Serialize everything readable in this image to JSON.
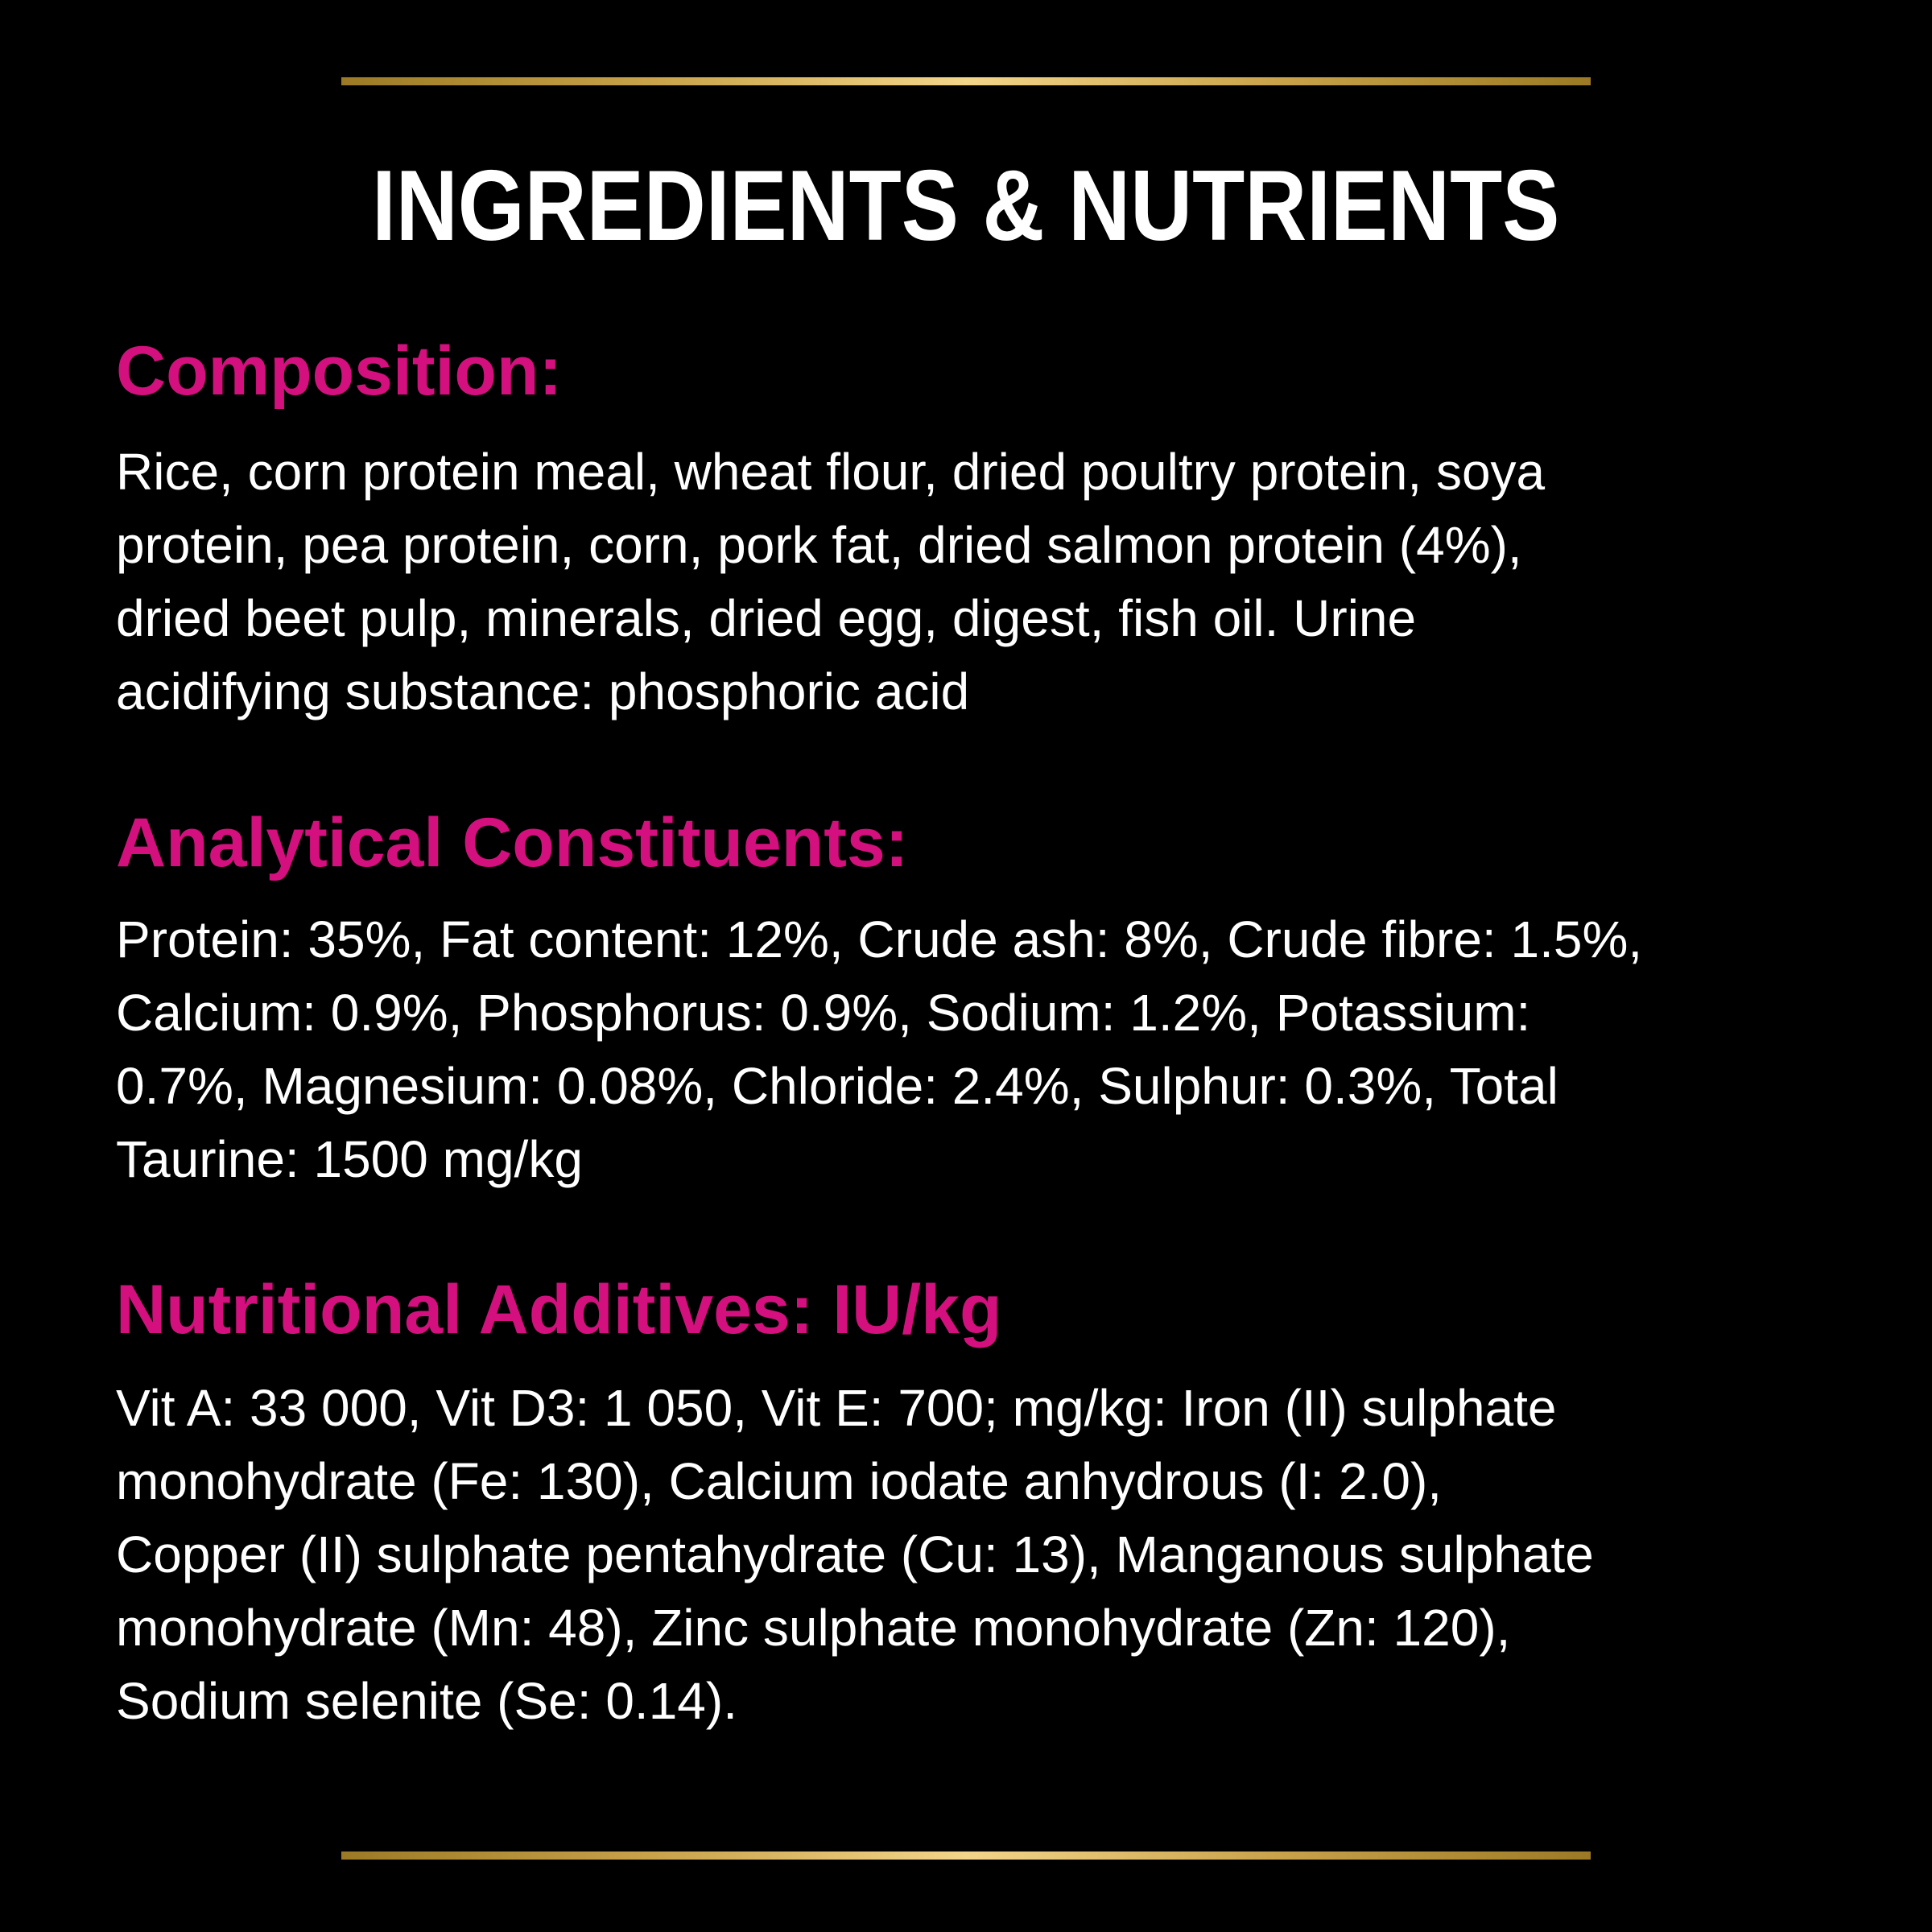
{
  "title": "INGREDIENTS & NUTRIENTS",
  "colors": {
    "background": "#000000",
    "accent": "#d4107e",
    "text": "#ffffff",
    "divider": "#c9a24a"
  },
  "sections": [
    {
      "heading": "Composition:",
      "lines": [
        "Rice, corn protein meal, wheat flour, dried poultry protein, soya",
        "protein, pea protein, corn, pork fat, dried salmon protein (4%),",
        "dried beet pulp, minerals, dried egg, digest, fish oil. Urine",
        "acidifying substance: phosphoric acid"
      ]
    },
    {
      "heading": "Analytical Constituents:",
      "lines": [
        "Protein: 35%, Fat content: 12%, Crude ash: 8%, Crude fibre: 1.5%,",
        "Calcium: 0.9%, Phosphorus: 0.9%, Sodium: 1.2%, Potassium:",
        "0.7%, Magnesium: 0.08%, Chloride: 2.4%, Sulphur: 0.3%, Total",
        "Taurine: 1500 mg/kg"
      ]
    },
    {
      "heading": "Nutritional Additives: IU/kg",
      "lines": [
        "Vit A: 33 000, Vit D3: 1 050, Vit E: 700; mg/kg: Iron (II) sulphate",
        "monohydrate (Fe: 130), Calcium iodate anhydrous (I: 2.0),",
        "Copper (II) sulphate pentahydrate (Cu: 13), Manganous sulphate",
        "monohydrate (Mn: 48), Zinc sulphate monohydrate (Zn: 120),",
        "Sodium selenite (Se: 0.14)."
      ]
    }
  ]
}
